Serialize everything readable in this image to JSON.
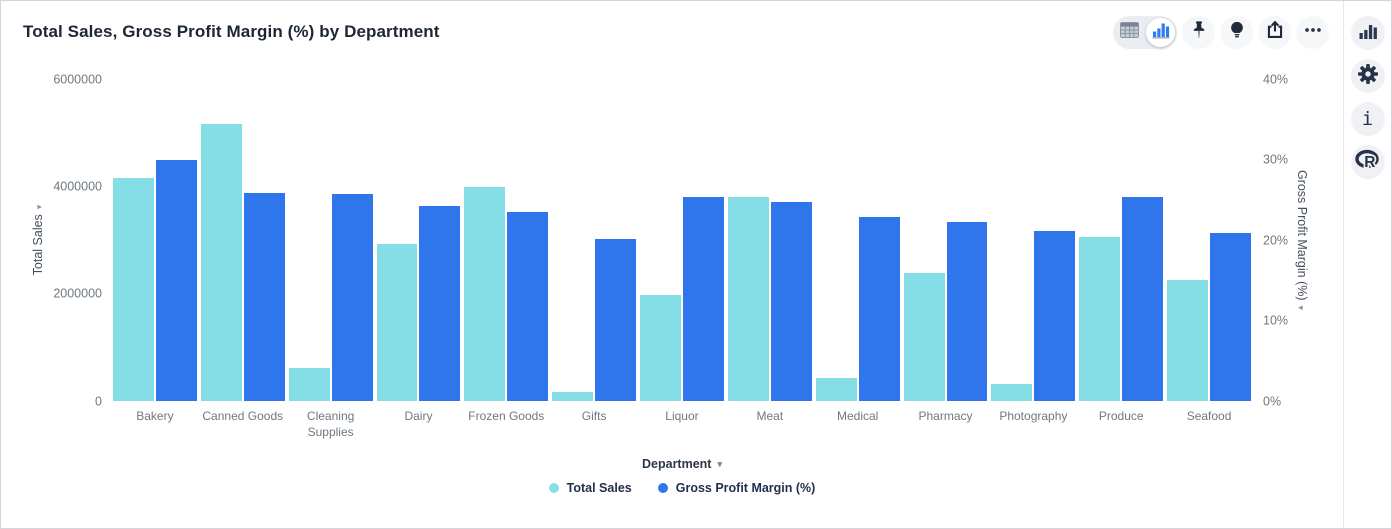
{
  "header": {
    "title": "Total Sales, Gross Profit Margin (%) by Department"
  },
  "toolbar": {
    "view_toggle": {
      "options": [
        "table-view",
        "chart-view"
      ],
      "active": "chart-view"
    },
    "action_icons": [
      "pin-icon",
      "insights-bulb-icon",
      "share-icon",
      "more-options-icon"
    ]
  },
  "right_rail": {
    "action_icons": [
      "chart-type-icon",
      "settings-gear-icon",
      "info-icon",
      "r-analysis-icon"
    ],
    "info_glyph": "i"
  },
  "chart_data": {
    "type": "bar",
    "title": "Total Sales, Gross Profit Margin (%) by Department",
    "xlabel": "Department",
    "grid": false,
    "legend_position": "bottom",
    "categories": [
      "Bakery",
      "Canned Goods",
      "Cleaning Supplies",
      "Dairy",
      "Frozen Goods",
      "Gifts",
      "Liquor",
      "Meat",
      "Medical",
      "Pharmacy",
      "Photography",
      "Produce",
      "Seafood"
    ],
    "series": [
      {
        "name": "Total Sales",
        "axis": "left",
        "color": "#85dde6",
        "values": [
          4150000,
          5160000,
          620000,
          2920000,
          3980000,
          170000,
          1970000,
          3810000,
          430000,
          2390000,
          320000,
          3060000,
          2260000
        ]
      },
      {
        "name": "Gross Profit Margin (%)",
        "axis": "right",
        "color": "#2f76ec",
        "values": [
          30.0,
          25.8,
          25.7,
          24.2,
          23.5,
          20.1,
          25.4,
          24.7,
          22.9,
          22.2,
          21.1,
          25.3,
          20.9
        ]
      }
    ],
    "left_axis": {
      "label": "Total Sales",
      "max": 6000000,
      "ticks": [
        "0",
        "2000000",
        "4000000",
        "6000000"
      ]
    },
    "right_axis": {
      "label": "Gross Profit Margin (%)",
      "max": 40,
      "ticks": [
        "0%",
        "10%",
        "20%",
        "30%",
        "40%"
      ]
    },
    "axis_caret": "▾",
    "xlabel_caret": "▾"
  }
}
